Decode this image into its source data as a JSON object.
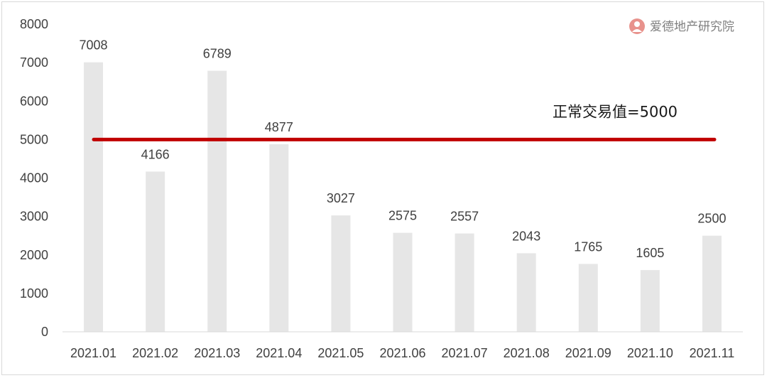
{
  "chart_data": {
    "type": "bar",
    "categories": [
      "2021.01",
      "2021.02",
      "2021.03",
      "2021.04",
      "2021.05",
      "2021.06",
      "2021.07",
      "2021.08",
      "2021.09",
      "2021.10",
      "2021.11"
    ],
    "values": [
      7008,
      4166,
      6789,
      4877,
      3027,
      2575,
      2557,
      2043,
      1765,
      1605,
      2500
    ],
    "ylim": [
      0,
      8000
    ],
    "yticks": [
      0,
      1000,
      2000,
      3000,
      4000,
      5000,
      6000,
      7000,
      8000
    ],
    "bar_color": "#e6e6e6",
    "reference_line": {
      "value": 5000,
      "label": "正常交易值=5000",
      "color": "#c00000"
    },
    "grid": false,
    "data_labels": true
  },
  "watermark": {
    "text": "爱德地产研究院",
    "color": "#e8928c"
  }
}
